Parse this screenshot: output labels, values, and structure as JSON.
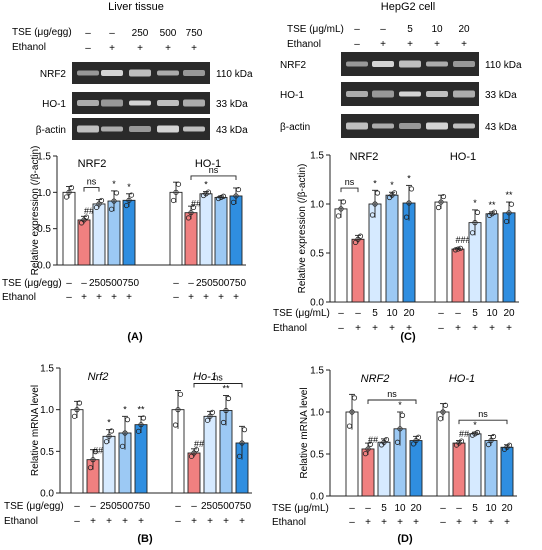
{
  "colors": {
    "control": "#ffffff",
    "ethanol": "#f08080",
    "tse_low": "#d6eaff",
    "tse_mid": "#9cc9f4",
    "tse_high": "#2f8ee0",
    "blot_bg": "#2a2a2a",
    "band": "#f2f2f2"
  },
  "panels": {
    "A": {
      "title": "Liver tissue",
      "letter": "(A)",
      "tse_label": "TSE (μg/egg)",
      "ethanol_label": "Ethanol",
      "tse_values": [
        "–",
        "–",
        "250",
        "500",
        "750"
      ],
      "ethanol_values": [
        "–",
        "+",
        "+",
        "+",
        "+"
      ],
      "blots": [
        {
          "name": "NRF2",
          "kda": "110 kDa"
        },
        {
          "name": "HO-1",
          "kda": "33 kDa"
        },
        {
          "name": "β-actin",
          "kda": "43 kDa"
        }
      ]
    },
    "C": {
      "title": "HepG2 cell",
      "letter": "(C)",
      "tse_label": "TSE (μg/mL)",
      "ethanol_label": "Ethanol",
      "tse_values": [
        "–",
        "–",
        "5",
        "10",
        "20"
      ],
      "ethanol_values": [
        "–",
        "+",
        "+",
        "+",
        "+"
      ],
      "blots": [
        {
          "name": "NRF2",
          "kda": "110 kDa"
        },
        {
          "name": "HO-1",
          "kda": "33 kDa"
        },
        {
          "name": "β-actin",
          "kda": "43 kDa"
        }
      ]
    },
    "B": {
      "letter": "(B)",
      "tse_label": "TSE (μg/egg)",
      "ethanol_label": "Ethanol"
    },
    "D": {
      "letter": "(D)",
      "tse_label": "TSE (μg/mL)",
      "ethanol_label": "Ethanol"
    }
  },
  "chart_data": [
    {
      "id": "A",
      "type": "bar",
      "ylabel": "Relative expression (/β-actin)",
      "ylim": [
        0,
        1.5
      ],
      "yticks": [
        "0.0",
        "0.5",
        "1.0",
        "1.5"
      ],
      "tick_values": [
        0,
        0.5,
        1.0,
        1.5
      ],
      "categories": [
        "–",
        "–",
        "250",
        "500",
        "750"
      ],
      "ethanol": [
        "–",
        "+",
        "+",
        "+",
        "+"
      ],
      "groups": [
        {
          "name": "NRF2",
          "values": [
            1.0,
            0.62,
            0.84,
            0.88,
            0.89
          ],
          "errors": [
            0.08,
            0.05,
            0.06,
            0.14,
            0.09
          ],
          "labels": [
            "",
            "##",
            "",
            "*",
            "*"
          ],
          "bracket": {
            "from": 1,
            "to": 2,
            "label": "ns"
          }
        },
        {
          "name": "HO-1",
          "values": [
            1.0,
            0.72,
            0.98,
            0.93,
            0.95
          ],
          "errors": [
            0.14,
            0.09,
            0.03,
            0.02,
            0.11
          ],
          "labels": [
            "",
            "##",
            "*",
            "",
            ""
          ],
          "bracket": {
            "from": 1,
            "to": 4,
            "label": "ns"
          }
        }
      ],
      "tse_labels_below": [
        "–",
        "250500750"
      ],
      "italic_titles": false
    },
    {
      "id": "C",
      "type": "bar",
      "ylabel": "Relative expression (/β-actin)",
      "ylim": [
        0,
        1.5
      ],
      "yticks": [
        "0.0",
        "0.5",
        "1.0",
        "1.5"
      ],
      "tick_values": [
        0,
        0.5,
        1.0,
        1.5
      ],
      "categories": [
        "–",
        "–",
        "5",
        "10",
        "20"
      ],
      "ethanol": [
        "–",
        "+",
        "+",
        "+",
        "+"
      ],
      "groups": [
        {
          "name": "NRF2",
          "values": [
            0.95,
            0.64,
            1.0,
            1.09,
            1.01
          ],
          "errors": [
            0.09,
            0.04,
            0.14,
            0.03,
            0.18
          ],
          "labels": [
            "",
            "",
            "*",
            "*",
            "*"
          ],
          "bracket": {
            "from": 0,
            "to": 1,
            "label": "ns"
          }
        },
        {
          "name": "HO-1",
          "values": [
            1.02,
            0.54,
            0.81,
            0.9,
            0.91
          ],
          "errors": [
            0.07,
            0.01,
            0.13,
            0.02,
            0.11
          ],
          "labels": [
            "",
            "###",
            "*",
            "**",
            "**"
          ],
          "bracket": null
        }
      ],
      "italic_titles": false
    },
    {
      "id": "B",
      "type": "bar",
      "ylabel": "Relative mRNA level",
      "ylim": [
        0,
        1.5
      ],
      "yticks": [
        "0.0",
        "0.5",
        "1.0",
        "1.5"
      ],
      "tick_values": [
        0,
        0.5,
        1.0,
        1.5
      ],
      "categories": [
        "–",
        "–",
        "250",
        "500",
        "750"
      ],
      "ethanol": [
        "–",
        "+",
        "+",
        "+",
        "+"
      ],
      "groups": [
        {
          "name": "Nrf2",
          "values": [
            1.0,
            0.4,
            0.68,
            0.72,
            0.82
          ],
          "errors": [
            0.1,
            0.12,
            0.08,
            0.2,
            0.1
          ],
          "labels": [
            "",
            "##",
            "*",
            "*",
            "**"
          ],
          "bracket": null
        },
        {
          "name": "Ho-1",
          "values": [
            1.0,
            0.48,
            0.92,
            0.99,
            0.6
          ],
          "errors": [
            0.23,
            0.05,
            0.06,
            0.18,
            0.2
          ],
          "labels": [
            "",
            "##",
            "",
            "**",
            ""
          ],
          "bracket": {
            "from": 1,
            "to": 4,
            "label": "ns"
          }
        }
      ],
      "italic_titles": true
    },
    {
      "id": "D",
      "type": "bar",
      "ylabel": "Relative mRNA level",
      "ylim": [
        0,
        1.5
      ],
      "yticks": [
        "0.0",
        "0.5",
        "1.0",
        "1.5"
      ],
      "tick_values": [
        0,
        0.5,
        1.0,
        1.5
      ],
      "categories": [
        "–",
        "–",
        "5",
        "10",
        "20"
      ],
      "ethanol": [
        "–",
        "+",
        "+",
        "+",
        "+"
      ],
      "groups": [
        {
          "name": "NRF2",
          "values": [
            1.0,
            0.56,
            0.64,
            0.8,
            0.66
          ],
          "errors": [
            0.21,
            0.07,
            0.04,
            0.2,
            0.05
          ],
          "labels": [
            "",
            "##",
            "",
            "*",
            ""
          ],
          "bracket": {
            "from": 1,
            "to": 4,
            "label": "ns"
          }
        },
        {
          "name": "HO-1",
          "values": [
            1.0,
            0.63,
            0.74,
            0.66,
            0.58
          ],
          "errors": [
            0.1,
            0.03,
            0.02,
            0.06,
            0.03
          ],
          "labels": [
            "",
            "##",
            "*",
            "",
            ""
          ],
          "bracket": {
            "from": 1,
            "to": 4,
            "label": "ns"
          }
        }
      ],
      "italic_titles": true
    }
  ]
}
